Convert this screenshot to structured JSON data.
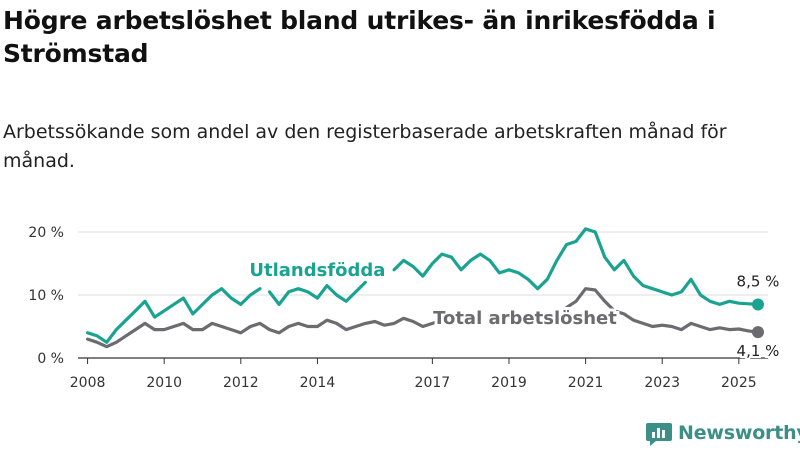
{
  "title": "Högre arbetslöshet bland utrikes- än inrikesfödda i Strömstad",
  "subtitle": "Arbetssökande som andel av den registerbaserade arbetskraften månad för månad.",
  "brand": {
    "name": "Newsworthy",
    "icon": "bar-chart-logo-icon"
  },
  "colors": {
    "utlandsfodda": "#1aa391",
    "total": "#6b6b70",
    "grid": "#dddddd",
    "brand": "#3b8f86"
  },
  "chart_data": {
    "type": "line",
    "xlabel": "",
    "ylabel": "",
    "ylim": [
      0,
      21
    ],
    "x_range": [
      "2007-10",
      "2025-07"
    ],
    "y_ticks": [
      {
        "value": 0,
        "label": "0 %"
      },
      {
        "value": 10,
        "label": "10 %"
      },
      {
        "value": 20,
        "label": "20 %"
      }
    ],
    "x_ticks": [
      "2008",
      "2010",
      "2012",
      "2014",
      "2017",
      "2019",
      "2021",
      "2023",
      "2025"
    ],
    "grid": true,
    "series": [
      {
        "name": "Utlandsfödda",
        "key": "utlandsfodda",
        "end_label": "8,5 %",
        "points": [
          [
            "2008-01",
            4.0
          ],
          [
            "2008-04",
            3.5
          ],
          [
            "2008-07",
            2.5
          ],
          [
            "2008-10",
            4.5
          ],
          [
            "2009-01",
            6.0
          ],
          [
            "2009-04",
            7.5
          ],
          [
            "2009-07",
            9.0
          ],
          [
            "2009-10",
            6.5
          ],
          [
            "2010-01",
            7.5
          ],
          [
            "2010-04",
            8.5
          ],
          [
            "2010-07",
            9.5
          ],
          [
            "2010-10",
            7.0
          ],
          [
            "2011-01",
            8.5
          ],
          [
            "2011-04",
            10.0
          ],
          [
            "2011-07",
            11.0
          ],
          [
            "2011-10",
            9.5
          ],
          [
            "2012-01",
            8.5
          ],
          [
            "2012-04",
            10.0
          ],
          [
            "2012-07",
            11.0
          ],
          null,
          [
            "2012-10",
            10.5
          ],
          [
            "2013-01",
            8.5
          ],
          [
            "2013-04",
            10.5
          ],
          [
            "2013-07",
            11.0
          ],
          [
            "2013-10",
            10.5
          ],
          [
            "2014-01",
            9.5
          ],
          [
            "2014-04",
            11.5
          ],
          [
            "2014-07",
            10.0
          ],
          [
            "2014-10",
            9.0
          ],
          [
            "2015-01",
            10.5
          ],
          [
            "2015-04",
            12.0
          ],
          null,
          [
            "2016-01",
            14.0
          ],
          [
            "2016-04",
            15.5
          ],
          [
            "2016-07",
            14.5
          ],
          [
            "2016-10",
            13.0
          ],
          [
            "2017-01",
            15.0
          ],
          [
            "2017-04",
            16.5
          ],
          [
            "2017-07",
            16.0
          ],
          [
            "2017-10",
            14.0
          ],
          [
            "2018-01",
            15.5
          ],
          [
            "2018-04",
            16.5
          ],
          [
            "2018-07",
            15.5
          ],
          [
            "2018-10",
            13.5
          ],
          [
            "2019-01",
            14.0
          ],
          [
            "2019-04",
            13.5
          ],
          [
            "2019-07",
            12.5
          ],
          [
            "2019-10",
            11.0
          ],
          [
            "2020-01",
            12.5
          ],
          [
            "2020-04",
            15.5
          ],
          [
            "2020-07",
            18.0
          ],
          [
            "2020-10",
            18.5
          ],
          [
            "2021-01",
            20.5
          ],
          [
            "2021-04",
            20.0
          ],
          [
            "2021-07",
            16.0
          ],
          [
            "2021-10",
            14.0
          ],
          [
            "2022-01",
            15.5
          ],
          [
            "2022-04",
            13.0
          ],
          [
            "2022-07",
            11.5
          ],
          [
            "2022-10",
            11.0
          ],
          [
            "2023-01",
            10.5
          ],
          [
            "2023-04",
            10.0
          ],
          [
            "2023-07",
            10.5
          ],
          [
            "2023-10",
            12.5
          ],
          [
            "2024-01",
            10.0
          ],
          [
            "2024-04",
            9.0
          ],
          [
            "2024-07",
            8.5
          ],
          [
            "2024-10",
            9.0
          ],
          [
            "2025-01",
            8.7
          ],
          [
            "2025-04",
            8.6
          ],
          [
            "2025-07",
            8.5
          ]
        ]
      },
      {
        "name": "Total arbetslöshet",
        "key": "total",
        "end_label": "4,1 %",
        "points": [
          [
            "2008-01",
            3.0
          ],
          [
            "2008-04",
            2.5
          ],
          [
            "2008-07",
            1.8
          ],
          [
            "2008-10",
            2.5
          ],
          [
            "2009-01",
            3.5
          ],
          [
            "2009-04",
            4.5
          ],
          [
            "2009-07",
            5.5
          ],
          [
            "2009-10",
            4.5
          ],
          [
            "2010-01",
            4.5
          ],
          [
            "2010-04",
            5.0
          ],
          [
            "2010-07",
            5.5
          ],
          [
            "2010-10",
            4.5
          ],
          [
            "2011-01",
            4.5
          ],
          [
            "2011-04",
            5.5
          ],
          [
            "2011-07",
            5.0
          ],
          [
            "2011-10",
            4.5
          ],
          [
            "2012-01",
            4.0
          ],
          [
            "2012-04",
            5.0
          ],
          [
            "2012-07",
            5.5
          ],
          [
            "2012-10",
            4.5
          ],
          [
            "2013-01",
            4.0
          ],
          [
            "2013-04",
            5.0
          ],
          [
            "2013-07",
            5.5
          ],
          [
            "2013-10",
            5.0
          ],
          [
            "2014-01",
            5.0
          ],
          [
            "2014-04",
            6.0
          ],
          [
            "2014-07",
            5.5
          ],
          [
            "2014-10",
            4.5
          ],
          [
            "2015-01",
            5.0
          ],
          [
            "2015-04",
            5.5
          ],
          [
            "2015-07",
            5.8
          ],
          [
            "2015-10",
            5.2
          ],
          [
            "2016-01",
            5.5
          ],
          [
            "2016-04",
            6.3
          ],
          [
            "2016-07",
            5.8
          ],
          [
            "2016-10",
            5.0
          ],
          [
            "2017-01",
            5.5
          ],
          [
            "2017-04",
            6.0
          ],
          null,
          [
            "2020-07",
            8.0
          ],
          [
            "2020-10",
            9.0
          ],
          [
            "2021-01",
            11.0
          ],
          [
            "2021-04",
            10.8
          ],
          [
            "2021-07",
            9.0
          ],
          [
            "2021-10",
            7.5
          ],
          [
            "2022-01",
            7.0
          ],
          [
            "2022-04",
            6.0
          ],
          [
            "2022-07",
            5.5
          ],
          [
            "2022-10",
            5.0
          ],
          [
            "2023-01",
            5.2
          ],
          [
            "2023-04",
            5.0
          ],
          [
            "2023-07",
            4.5
          ],
          [
            "2023-10",
            5.5
          ],
          [
            "2024-01",
            5.0
          ],
          [
            "2024-04",
            4.5
          ],
          [
            "2024-07",
            4.8
          ],
          [
            "2024-10",
            4.5
          ],
          [
            "2025-01",
            4.6
          ],
          [
            "2025-04",
            4.3
          ],
          [
            "2025-07",
            4.1
          ]
        ]
      }
    ],
    "annotations": [
      {
        "series": "utlandsfodda",
        "text": "Utlandsfödda",
        "at": [
          "2014-01",
          13
        ]
      },
      {
        "series": "total",
        "text": "Total arbetslöshet",
        "at": [
          "2019-06",
          5.4
        ]
      }
    ]
  }
}
